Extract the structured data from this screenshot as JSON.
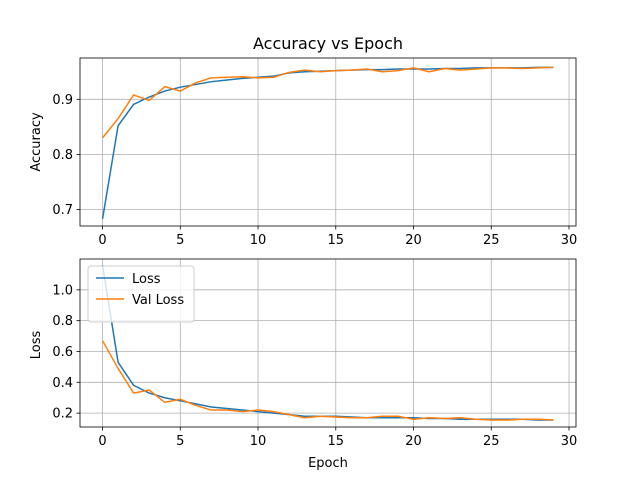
{
  "chart_data": [
    {
      "type": "line",
      "title": "Accuracy vs Epoch",
      "xlabel": "",
      "ylabel": "Accuracy",
      "xlim": [
        -1.45,
        30.45
      ],
      "ylim": [
        0.67,
        0.975
      ],
      "xticks": [
        0,
        5,
        10,
        15,
        20,
        25,
        30
      ],
      "yticks": [
        0.7,
        0.8,
        0.9
      ],
      "grid": true,
      "legend": null,
      "x": [
        0,
        1,
        2,
        3,
        4,
        5,
        6,
        7,
        8,
        9,
        10,
        11,
        12,
        13,
        14,
        15,
        16,
        17,
        18,
        19,
        20,
        21,
        22,
        23,
        24,
        25,
        26,
        27,
        28,
        29
      ],
      "series": [
        {
          "color": "#1f77b4",
          "values": [
            0.683,
            0.852,
            0.891,
            0.904,
            0.915,
            0.922,
            0.927,
            0.932,
            0.935,
            0.938,
            0.94,
            0.942,
            0.948,
            0.95,
            0.951,
            0.952,
            0.953,
            0.954,
            0.954,
            0.955,
            0.955,
            0.955,
            0.956,
            0.956,
            0.957,
            0.957,
            0.957,
            0.957,
            0.958,
            0.958
          ]
        },
        {
          "color": "#ff7f0e",
          "values": [
            0.83,
            0.865,
            0.908,
            0.898,
            0.923,
            0.915,
            0.93,
            0.939,
            0.94,
            0.941,
            0.939,
            0.94,
            0.949,
            0.953,
            0.95,
            0.952,
            0.953,
            0.955,
            0.95,
            0.952,
            0.957,
            0.95,
            0.956,
            0.953,
            0.955,
            0.957,
            0.957,
            0.956,
            0.957,
            0.958
          ]
        }
      ]
    },
    {
      "type": "line",
      "title": "",
      "xlabel": "Epoch",
      "ylabel": "Loss",
      "xlim": [
        -1.45,
        30.45
      ],
      "ylim": [
        0.11,
        1.2
      ],
      "xticks": [
        0,
        5,
        10,
        15,
        20,
        25,
        30
      ],
      "yticks": [
        0.2,
        0.4,
        0.6,
        0.8,
        1.0
      ],
      "grid": true,
      "legend": "upper left",
      "x": [
        0,
        1,
        2,
        3,
        4,
        5,
        6,
        7,
        8,
        9,
        10,
        11,
        12,
        13,
        14,
        15,
        16,
        17,
        18,
        19,
        20,
        21,
        22,
        23,
        24,
        25,
        26,
        27,
        28,
        29
      ],
      "series": [
        {
          "name": "Loss",
          "color": "#1f77b4",
          "values": [
            1.16,
            0.53,
            0.38,
            0.33,
            0.3,
            0.28,
            0.26,
            0.24,
            0.23,
            0.22,
            0.21,
            0.2,
            0.19,
            0.18,
            0.18,
            0.18,
            0.175,
            0.17,
            0.17,
            0.17,
            0.17,
            0.165,
            0.165,
            0.16,
            0.16,
            0.16,
            0.16,
            0.16,
            0.155,
            0.155
          ]
        },
        {
          "name": "Val Loss",
          "color": "#ff7f0e",
          "values": [
            0.67,
            0.49,
            0.33,
            0.35,
            0.27,
            0.29,
            0.25,
            0.22,
            0.22,
            0.21,
            0.22,
            0.21,
            0.19,
            0.17,
            0.18,
            0.175,
            0.17,
            0.17,
            0.18,
            0.18,
            0.16,
            0.17,
            0.165,
            0.17,
            0.16,
            0.155,
            0.155,
            0.16,
            0.16,
            0.155
          ]
        }
      ]
    }
  ]
}
